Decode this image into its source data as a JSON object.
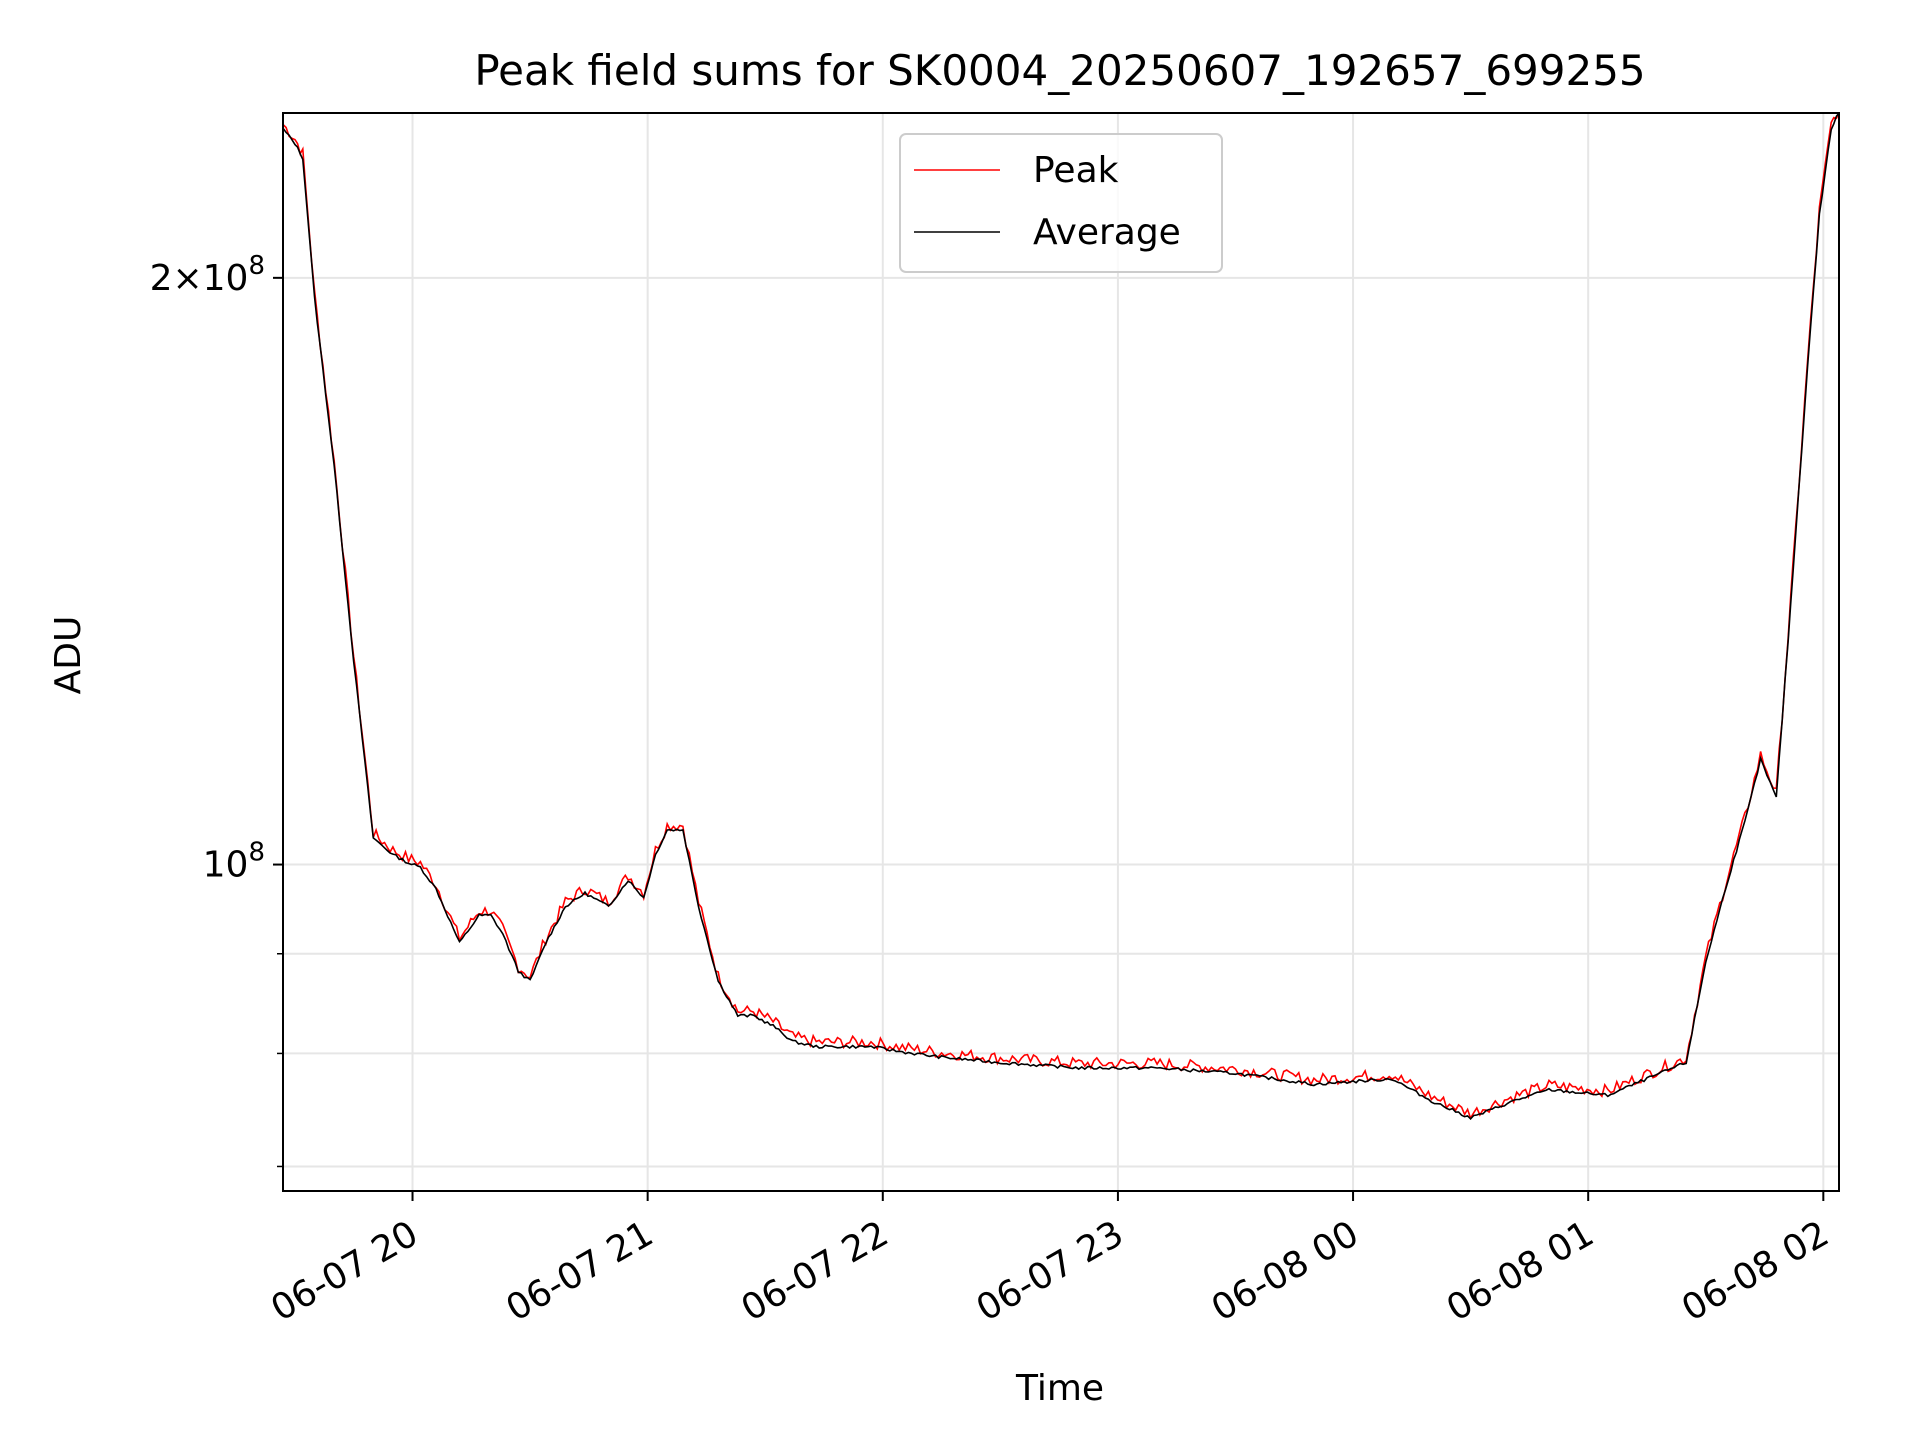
{
  "chart_data": {
    "type": "line",
    "title": "Peak field sums for SK0004_20250607_192657_699255",
    "xlabel": "Time",
    "ylabel": "ADU",
    "y_scale": "log",
    "xlim": [
      "2025-06-07 19:26:57",
      "2025-06-08 02:04:00"
    ],
    "ylim": [
      68000000,
      243000000
    ],
    "grid": true,
    "legend_position": "upper center",
    "x_ticks": [
      "2025-06-07 20:00",
      "2025-06-07 21:00",
      "2025-06-07 22:00",
      "2025-06-07 23:00",
      "2025-06-08 00:00",
      "2025-06-08 01:00",
      "2025-06-08 02:00"
    ],
    "x_tick_labels": [
      "06-07 20",
      "06-07 21",
      "06-07 22",
      "06-07 23",
      "06-08 00",
      "06-08 01",
      "06-08 02"
    ],
    "y_major_ticks": [
      100000000,
      200000000
    ],
    "y_major_labels": [
      {
        "mantissa": "",
        "base": "10",
        "exp": "8"
      },
      {
        "mantissa": "2",
        "base": "10",
        "exp": "8"
      }
    ],
    "y_minor_ticks": [
      70000000,
      80000000,
      90000000,
      300000000
    ],
    "series": [
      {
        "name": "Peak",
        "color": "#ff0000"
      },
      {
        "name": "Average",
        "color": "#000000"
      }
    ],
    "x": [
      "2025-06-07 19:27",
      "2025-06-07 19:30",
      "2025-06-07 19:32",
      "2025-06-07 19:35",
      "2025-06-07 19:40",
      "2025-06-07 19:45",
      "2025-06-07 19:50",
      "2025-06-07 19:55",
      "2025-06-07 19:59",
      "2025-06-07 20:02",
      "2025-06-07 20:06",
      "2025-06-07 20:12",
      "2025-06-07 20:17",
      "2025-06-07 20:20",
      "2025-06-07 20:23",
      "2025-06-07 20:27",
      "2025-06-07 20:30",
      "2025-06-07 20:34",
      "2025-06-07 20:39",
      "2025-06-07 20:44",
      "2025-06-07 20:50",
      "2025-06-07 20:55",
      "2025-06-07 20:59",
      "2025-06-07 21:02",
      "2025-06-07 21:05",
      "2025-06-07 21:09",
      "2025-06-07 21:13",
      "2025-06-07 21:18",
      "2025-06-07 21:23",
      "2025-06-07 21:27",
      "2025-06-07 21:32",
      "2025-06-07 21:37",
      "2025-06-07 21:43",
      "2025-06-07 21:50",
      "2025-06-07 21:57",
      "2025-06-07 22:05",
      "2025-06-07 22:15",
      "2025-06-07 22:30",
      "2025-06-07 22:50",
      "2025-06-07 23:10",
      "2025-06-07 23:30",
      "2025-06-07 23:50",
      "2025-06-08 00:10",
      "2025-06-08 00:20",
      "2025-06-08 00:30",
      "2025-06-08 00:41",
      "2025-06-08 00:50",
      "2025-06-08 01:05",
      "2025-06-08 01:15",
      "2025-06-08 01:25",
      "2025-06-08 01:30",
      "2025-06-08 01:35",
      "2025-06-08 01:40",
      "2025-06-08 01:44",
      "2025-06-08 01:48",
      "2025-06-08 01:51",
      "2025-06-08 01:53",
      "2025-06-08 01:56",
      "2025-06-08 01:59",
      "2025-06-08 02:02",
      "2025-06-08 02:04"
    ],
    "values": [
      238000000,
      234000000,
      230000000,
      195000000,
      160000000,
      127000000,
      103000000,
      101000000,
      100000000,
      99500000,
      97000000,
      91000000,
      94000000,
      94000000,
      92000000,
      88000000,
      87000000,
      91000000,
      95000000,
      96500000,
      95000000,
      98000000,
      96000000,
      101000000,
      104000000,
      104000000,
      95000000,
      87000000,
      83500000,
      83500000,
      82500000,
      81000000,
      80500000,
      80500000,
      80500000,
      80000000,
      79500000,
      79000000,
      78500000,
      78500000,
      78000000,
      77000000,
      77500000,
      75500000,
      74000000,
      75500000,
      76500000,
      76000000,
      77500000,
      79000000,
      89000000,
      97000000,
      105000000,
      113000000,
      108000000,
      130000000,
      148000000,
      180000000,
      215000000,
      238000000,
      243000000
    ]
  },
  "axes_colors": {
    "grid": "#e6e6e6",
    "frame": "#000000",
    "legend_edge": "#cccccc"
  }
}
